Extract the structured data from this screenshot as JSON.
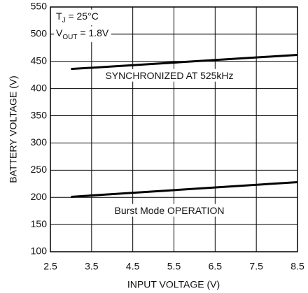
{
  "chart_data": {
    "type": "line",
    "x_label": "INPUT VOLTAGE (V)",
    "y_label": "BATTERY VOLTAGE (V)",
    "annotations": [
      {
        "parts": [
          "T",
          "J",
          " = 25°C"
        ]
      },
      {
        "parts": [
          "V",
          "OUT",
          " = 1.8V"
        ]
      },
      {
        "parts": [
          "SYNCHRONIZED AT 525kHz"
        ]
      },
      {
        "parts": [
          "Burst Mode OPERATION"
        ]
      }
    ],
    "x": [
      3,
      8.5
    ],
    "series": [
      {
        "color": "#000000",
        "values": [
          436,
          462
        ]
      },
      {
        "color": "#000000",
        "values": [
          201,
          228
        ]
      }
    ],
    "xlim": [
      2.5,
      8.5
    ],
    "xticks": [
      2.5,
      3.5,
      4.5,
      5.5,
      6.5,
      7.5,
      8.5
    ],
    "ylim": [
      100,
      550
    ],
    "yticks": [
      100,
      150,
      200,
      250,
      300,
      350,
      400,
      450,
      500,
      550
    ],
    "grid": true
  }
}
